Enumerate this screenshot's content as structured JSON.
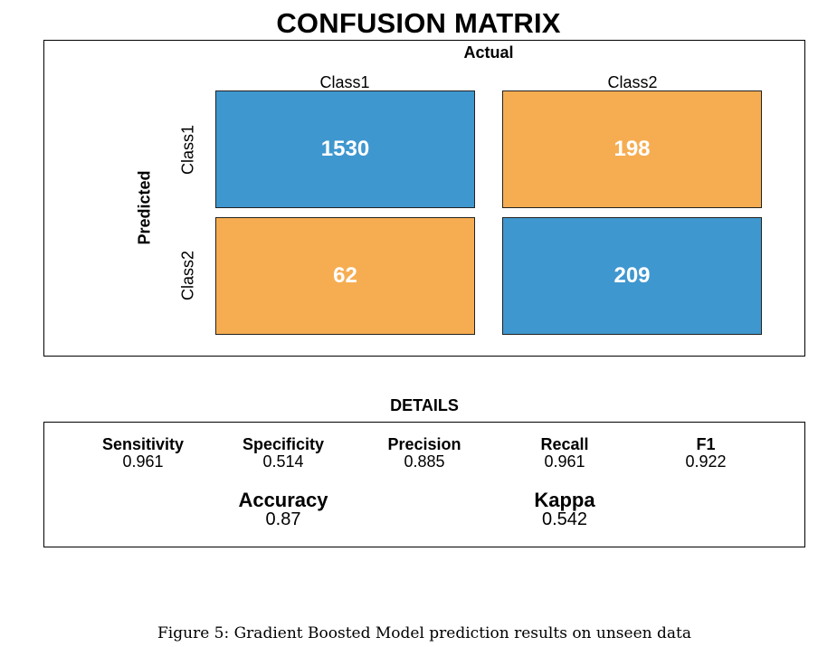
{
  "title": "CONFUSION MATRIX",
  "chart_data": {
    "type": "heatmap",
    "title": "CONFUSION MATRIX",
    "xlabel": "Actual",
    "ylabel": "Predicted",
    "x_categories": [
      "Class1",
      "Class2"
    ],
    "y_categories": [
      "Class1",
      "Class2"
    ],
    "cells": [
      {
        "predicted": "Class1",
        "actual": "Class1",
        "value": "1530",
        "color": "#3f97cf"
      },
      {
        "predicted": "Class1",
        "actual": "Class2",
        "value": "198",
        "color": "#f6ad52"
      },
      {
        "predicted": "Class2",
        "actual": "Class1",
        "value": "62",
        "color": "#f6ad52"
      },
      {
        "predicted": "Class2",
        "actual": "Class2",
        "value": "209",
        "color": "#3f97cf"
      }
    ]
  },
  "details": {
    "title": "DETAILS",
    "metrics": [
      {
        "name": "Sensitivity",
        "value": "0.961"
      },
      {
        "name": "Specificity",
        "value": "0.514"
      },
      {
        "name": "Precision",
        "value": "0.885"
      },
      {
        "name": "Recall",
        "value": "0.961"
      },
      {
        "name": "F1",
        "value": "0.922"
      }
    ],
    "summary": [
      {
        "name": "Accuracy",
        "value": "0.87"
      },
      {
        "name": "Kappa",
        "value": "0.542"
      }
    ]
  },
  "caption": "Figure 5: Gradient Boosted Model prediction results on unseen data"
}
